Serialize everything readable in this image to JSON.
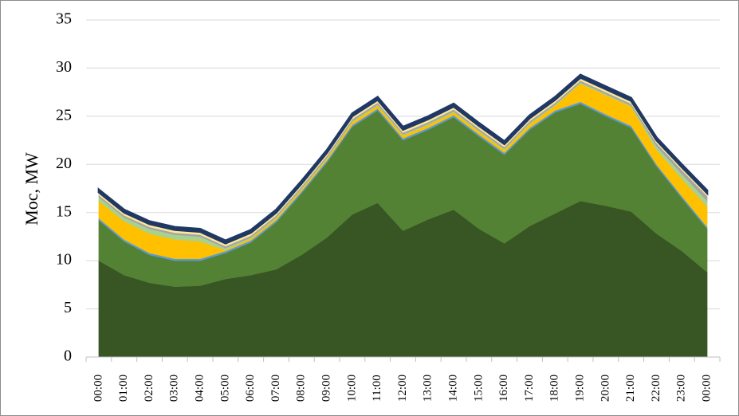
{
  "chart_data": {
    "type": "stacked_area",
    "y_label": "Moc, MW",
    "categories": [
      "00:00",
      "01:00",
      "02:00",
      "03:00",
      "04:00",
      "05:00",
      "06:00",
      "07:00",
      "08:00",
      "09:00",
      "10:00",
      "11:00",
      "12:00",
      "13:00",
      "14:00",
      "15:00",
      "16:00",
      "17:00",
      "18:00",
      "19:00",
      "20:00",
      "21:00",
      "22:00",
      "23:00",
      "00:00"
    ],
    "series": [
      {
        "color": "#375623",
        "values": [
          10,
          8.5,
          7.7,
          7.3,
          7.4,
          8.1,
          8.5,
          9.1,
          10.6,
          12.4,
          14.8,
          16,
          13.1,
          14.3,
          15.3,
          13.3,
          11.8,
          13.6,
          14.9,
          16.2,
          15.7,
          15.1,
          12.8,
          11,
          8.8
        ]
      },
      {
        "color": "#548235",
        "values": [
          4.2,
          3.5,
          2.9,
          2.7,
          2.6,
          2.7,
          3.4,
          4.9,
          6.4,
          7.8,
          9.1,
          9.6,
          9.4,
          9.3,
          9.6,
          9.6,
          9.2,
          10,
          10.5,
          10.1,
          9.3,
          8.7,
          7,
          5.5,
          4.5
        ]
      },
      {
        "color": "#5b9bd5",
        "values": [
          0.2,
          0.2,
          0.2,
          0.2,
          0.2,
          0.2,
          0.2,
          0.2,
          0.2,
          0.2,
          0.2,
          0.2,
          0.2,
          0.2,
          0.2,
          0.2,
          0.2,
          0.2,
          0.2,
          0.2,
          0.2,
          0.2,
          0.2,
          0.2,
          0.2
        ]
      },
      {
        "color": "#ffc000",
        "values": [
          1.8,
          1.9,
          2,
          2,
          1.8,
          0.1,
          0.2,
          0.2,
          0.2,
          0.2,
          0.3,
          0.3,
          0.3,
          0.3,
          0.3,
          0.3,
          0.3,
          0.4,
          0.5,
          1.9,
          2,
          2,
          1.5,
          1.8,
          2.1
        ]
      },
      {
        "color": "#a9d18e",
        "values": [
          0.4,
          0.4,
          0.5,
          0.5,
          0.5,
          0.2,
          0.1,
          0.1,
          0.1,
          0.1,
          0.1,
          0.1,
          0.1,
          0.1,
          0.1,
          0.1,
          0.1,
          0.1,
          0.1,
          0.1,
          0.1,
          0.1,
          0.4,
          0.5,
          0.6
        ]
      },
      {
        "color": "#a5a5a5",
        "values": [
          0.2,
          0.2,
          0.2,
          0.2,
          0.2,
          0.2,
          0.2,
          0.2,
          0.2,
          0.2,
          0.2,
          0.2,
          0.2,
          0.2,
          0.2,
          0.2,
          0.2,
          0.2,
          0.2,
          0.2,
          0.2,
          0.2,
          0.3,
          0.4,
          0.5
        ]
      },
      {
        "color": "#ffe699",
        "values": [
          0.3,
          0.3,
          0.3,
          0.3,
          0.3,
          0.3,
          0.3,
          0.3,
          0.3,
          0.3,
          0.3,
          0.3,
          0.3,
          0.3,
          0.3,
          0.3,
          0.3,
          0.3,
          0.3,
          0.3,
          0.3,
          0.3,
          0.3,
          0.3,
          0.3
        ]
      },
      {
        "color": "#203864",
        "values": [
          0.3,
          0.3,
          0.3,
          0.3,
          0.3,
          0.3,
          0.3,
          0.3,
          0.3,
          0.3,
          0.3,
          0.3,
          0.3,
          0.3,
          0.3,
          0.3,
          0.3,
          0.3,
          0.3,
          0.3,
          0.3,
          0.3,
          0.3,
          0.3,
          0.3
        ]
      }
    ],
    "ylim": [
      0,
      35
    ],
    "yticks": [
      0,
      5,
      10,
      15,
      20,
      25,
      30,
      35
    ],
    "grid": true
  }
}
